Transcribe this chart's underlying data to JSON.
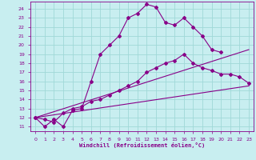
{
  "xlabel": "Windchill (Refroidissement éolien,°C)",
  "bg_color": "#c8eef0",
  "grid_color": "#a0d8d8",
  "line_color": "#880088",
  "xlim": [
    -0.5,
    23.5
  ],
  "ylim": [
    10.5,
    24.8
  ],
  "xticks": [
    0,
    1,
    2,
    3,
    4,
    5,
    6,
    7,
    8,
    9,
    10,
    11,
    12,
    13,
    14,
    15,
    16,
    17,
    18,
    19,
    20,
    21,
    22,
    23
  ],
  "yticks": [
    11,
    12,
    13,
    14,
    15,
    16,
    17,
    18,
    19,
    20,
    21,
    22,
    23,
    24
  ],
  "curve1_x": [
    0,
    1,
    2,
    3,
    4,
    5,
    6,
    7,
    8,
    9,
    10,
    11,
    12,
    13,
    14,
    15,
    16,
    17,
    18,
    19,
    20
  ],
  "curve1_y": [
    12.0,
    11.0,
    11.8,
    11.0,
    12.8,
    13.0,
    16.0,
    19.0,
    20.0,
    21.0,
    23.0,
    23.5,
    24.5,
    24.2,
    22.5,
    22.2,
    23.0,
    22.0,
    21.0,
    19.5,
    19.2
  ],
  "curve2_x": [
    0,
    1,
    2,
    3,
    4,
    5,
    6,
    7,
    8,
    9,
    10,
    11,
    12,
    13,
    14,
    15,
    16,
    17,
    18,
    19,
    20,
    21,
    22,
    23
  ],
  "curve2_y": [
    12.0,
    11.8,
    11.5,
    12.5,
    13.0,
    13.2,
    13.8,
    14.0,
    14.5,
    15.0,
    15.5,
    16.0,
    17.0,
    17.5,
    18.0,
    18.3,
    19.0,
    18.0,
    17.5,
    17.2,
    16.8,
    16.8,
    16.5,
    15.8
  ],
  "line3_x": [
    0,
    23
  ],
  "line3_y": [
    12.0,
    15.5
  ],
  "line4_x": [
    0,
    23
  ],
  "line4_y": [
    12.0,
    19.5
  ]
}
